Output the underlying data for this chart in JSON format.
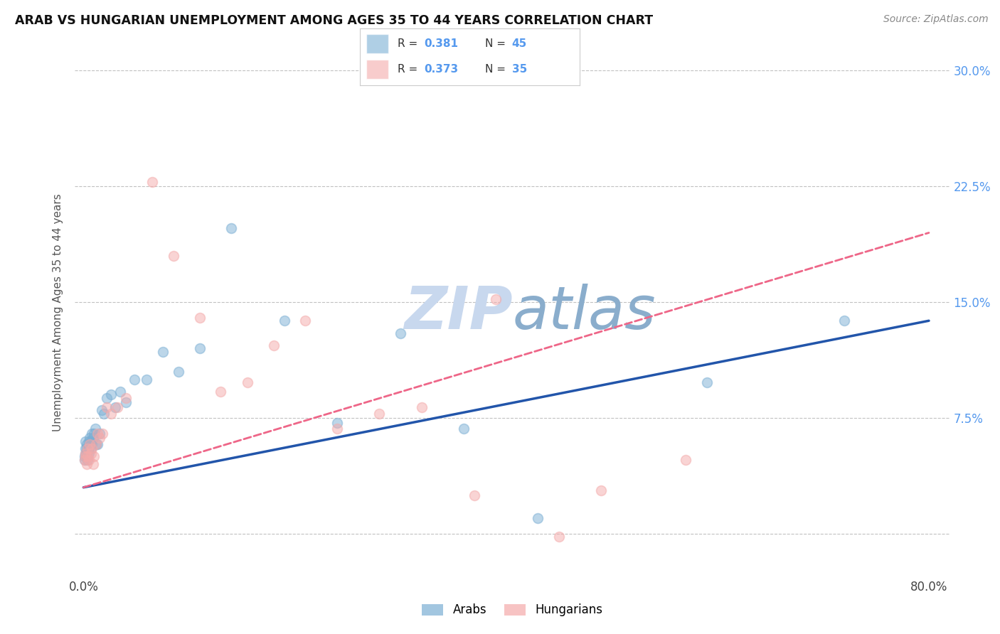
{
  "title": "ARAB VS HUNGARIAN UNEMPLOYMENT AMONG AGES 35 TO 44 YEARS CORRELATION CHART",
  "source": "Source: ZipAtlas.com",
  "ylabel": "Unemployment Among Ages 35 to 44 years",
  "xlim": [
    -0.008,
    0.82
  ],
  "ylim": [
    -0.028,
    0.315
  ],
  "arab_color": "#7BAFD4",
  "hung_color": "#F4AAAA",
  "arab_line_color": "#2255AA",
  "hung_line_color": "#EE6688",
  "watermark_color": "#C8D8EE",
  "background_color": "#FFFFFF",
  "grid_color": "#BBBBBB",
  "title_color": "#111111",
  "source_color": "#888888",
  "ylabel_color": "#555555",
  "right_tick_color": "#5599EE",
  "legend_r_arab": "0.381",
  "legend_n_arab": "45",
  "legend_r_hung": "0.373",
  "legend_n_hung": "35",
  "arab_x": [
    0.001,
    0.001,
    0.002,
    0.002,
    0.002,
    0.003,
    0.003,
    0.003,
    0.004,
    0.004,
    0.005,
    0.005,
    0.005,
    0.006,
    0.006,
    0.007,
    0.007,
    0.008,
    0.008,
    0.009,
    0.01,
    0.011,
    0.012,
    0.013,
    0.015,
    0.017,
    0.019,
    0.022,
    0.026,
    0.03,
    0.035,
    0.04,
    0.048,
    0.06,
    0.075,
    0.09,
    0.11,
    0.14,
    0.19,
    0.24,
    0.3,
    0.36,
    0.43,
    0.59,
    0.72
  ],
  "arab_y": [
    0.05,
    0.048,
    0.055,
    0.052,
    0.06,
    0.05,
    0.055,
    0.058,
    0.048,
    0.053,
    0.055,
    0.052,
    0.06,
    0.058,
    0.062,
    0.055,
    0.06,
    0.058,
    0.065,
    0.062,
    0.065,
    0.068,
    0.058,
    0.058,
    0.065,
    0.08,
    0.078,
    0.088,
    0.09,
    0.082,
    0.092,
    0.085,
    0.1,
    0.1,
    0.118,
    0.105,
    0.12,
    0.198,
    0.138,
    0.072,
    0.13,
    0.068,
    0.01,
    0.098,
    0.138
  ],
  "hung_x": [
    0.001,
    0.002,
    0.002,
    0.003,
    0.004,
    0.004,
    0.005,
    0.006,
    0.007,
    0.008,
    0.009,
    0.01,
    0.012,
    0.013,
    0.015,
    0.018,
    0.022,
    0.026,
    0.032,
    0.04,
    0.065,
    0.085,
    0.11,
    0.13,
    0.155,
    0.18,
    0.21,
    0.24,
    0.28,
    0.32,
    0.37,
    0.39,
    0.45,
    0.49,
    0.57
  ],
  "hung_y": [
    0.048,
    0.05,
    0.052,
    0.045,
    0.05,
    0.055,
    0.048,
    0.058,
    0.052,
    0.055,
    0.045,
    0.05,
    0.058,
    0.065,
    0.062,
    0.065,
    0.082,
    0.078,
    0.082,
    0.088,
    0.228,
    0.18,
    0.14,
    0.092,
    0.098,
    0.122,
    0.138,
    0.068,
    0.078,
    0.082,
    0.025,
    0.152,
    -0.002,
    0.028,
    0.048
  ],
  "arab_line_x0": 0.0,
  "arab_line_y0": 0.03,
  "arab_line_x1": 0.8,
  "arab_line_y1": 0.138,
  "hung_line_x0": 0.0,
  "hung_line_y0": 0.03,
  "hung_line_x1": 0.8,
  "hung_line_y1": 0.195
}
